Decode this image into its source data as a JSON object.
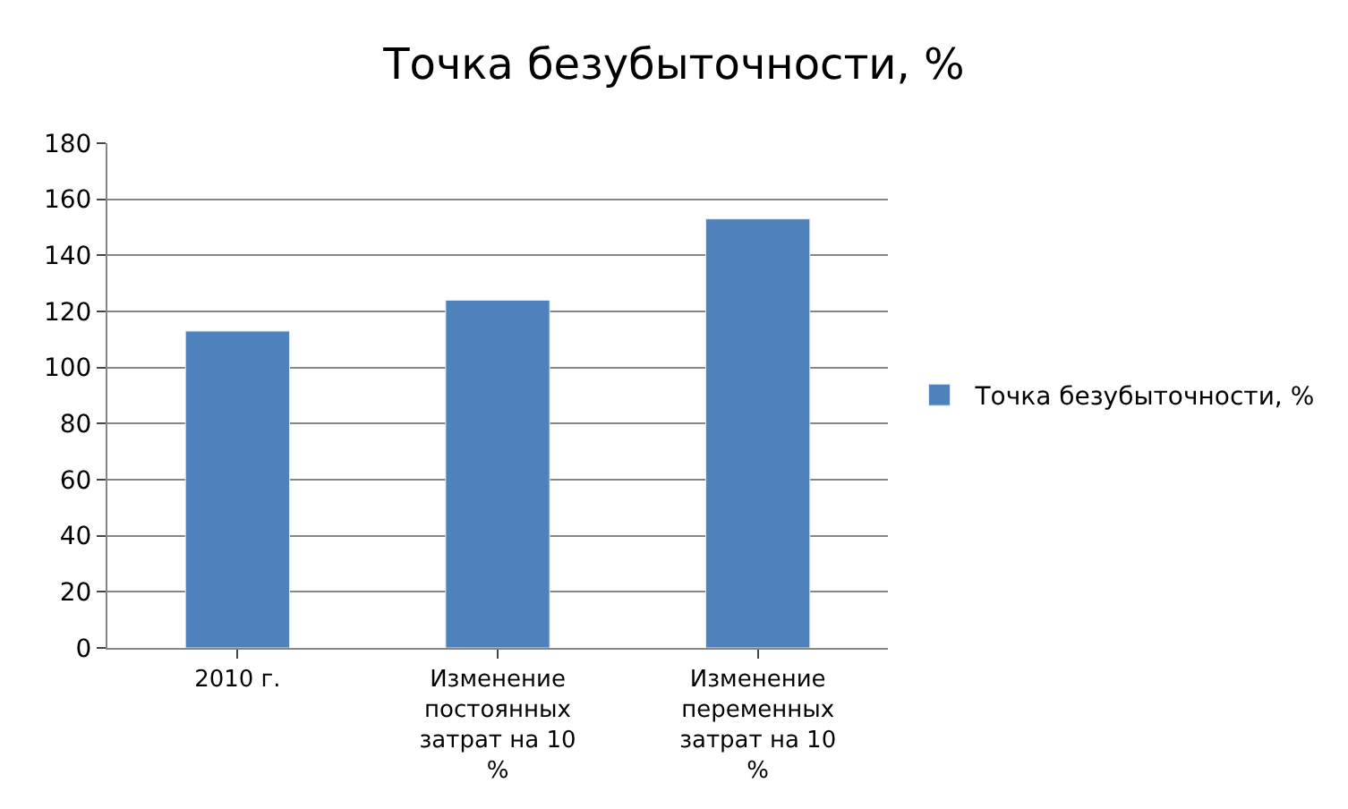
{
  "chart_data": {
    "type": "bar",
    "title": "Точка безубыточности, %",
    "categories": [
      "2010 г.",
      "Изменение постоянных затрат на 10 %",
      "Изменение переменных затрат на 10 %"
    ],
    "series": [
      {
        "name": "Точка безубыточности, %",
        "color": "#4f81bd",
        "values": [
          113,
          124,
          153
        ]
      }
    ],
    "ylim": [
      0,
      180
    ],
    "yticks": [
      0,
      20,
      40,
      60,
      80,
      100,
      120,
      140,
      160,
      180
    ],
    "grid": "y",
    "legend": "right"
  }
}
